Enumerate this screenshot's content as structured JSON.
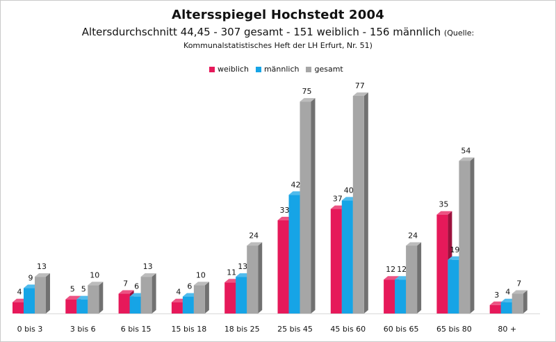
{
  "chart_data": {
    "type": "bar",
    "title": "Altersspiegel Hochstedt 2004",
    "subtitle": "Altersdurchschnitt 44,45 - 307 gesamt - 151 weiblich - 156 männlich",
    "subtitle_source_prefix": "(Quelle:",
    "source": "Kommunalstatistisches Heft der LH Erfurt, Nr. 51)",
    "categories": [
      "0 bis 3",
      "3 bis 6",
      "6 bis 15",
      "15 bis 18",
      "18 bis 25",
      "25 bis 45",
      "45 bis 60",
      "60 bis 65",
      "65 bis 80",
      "80 +"
    ],
    "series": [
      {
        "name": "weiblich",
        "color": "#e6195a",
        "values": [
          4,
          5,
          7,
          4,
          11,
          33,
          37,
          12,
          35,
          3
        ]
      },
      {
        "name": "männlich",
        "color": "#16a4e6",
        "values": [
          9,
          5,
          6,
          6,
          13,
          42,
          40,
          12,
          19,
          4
        ]
      },
      {
        "name": "gesamt",
        "color": "#a6a6a6",
        "values": [
          13,
          10,
          13,
          10,
          24,
          75,
          77,
          24,
          54,
          7
        ]
      }
    ],
    "ylim": [
      0,
      80
    ],
    "legend_position": "top",
    "grid": false,
    "style": "3d-columns"
  }
}
